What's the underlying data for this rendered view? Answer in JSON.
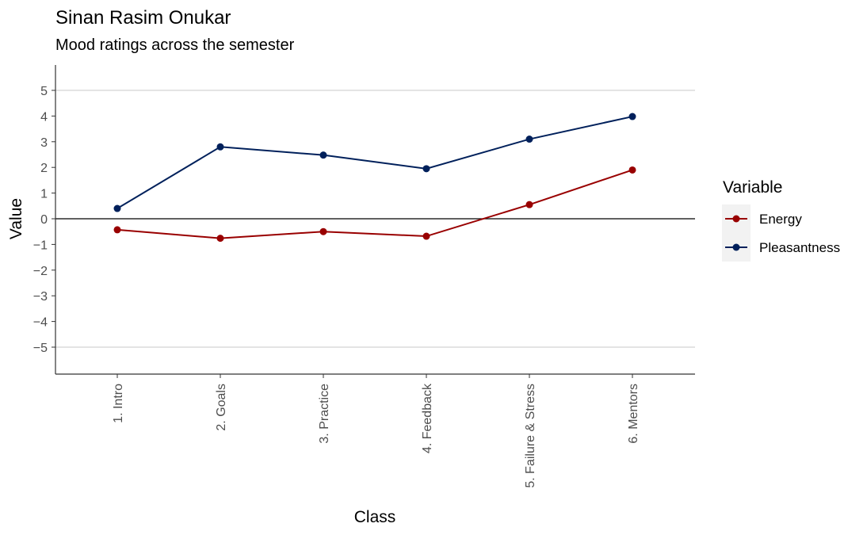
{
  "chart_data": {
    "type": "line",
    "title": "Sinan Rasim Onukar",
    "subtitle": "Mood ratings across the semester",
    "xlabel": "Class",
    "ylabel": "Value",
    "categories": [
      "1. Intro",
      "2. Goals",
      "3. Practice",
      "4. Feedback",
      "5. Failure & Stress",
      "6. Mentors"
    ],
    "ylim": [
      -6,
      6
    ],
    "yticks": [
      -5,
      -4,
      -3,
      -2,
      -1,
      0,
      1,
      2,
      3,
      4,
      5
    ],
    "ytick_labels": [
      "−5",
      "−4",
      "−3",
      "−2",
      "−1",
      "0",
      "1",
      "2",
      "3",
      "4",
      "5"
    ],
    "hlines": [
      -5,
      0,
      5
    ],
    "legend": {
      "title": "Variable",
      "position": "right"
    },
    "series": [
      {
        "name": "Energy",
        "color": "#990000",
        "values": [
          -0.43,
          -0.76,
          -0.5,
          -0.68,
          0.55,
          1.9
        ]
      },
      {
        "name": "Pleasantness",
        "color": "#00205b",
        "values": [
          0.4,
          2.8,
          2.48,
          1.95,
          3.1,
          3.98
        ]
      }
    ]
  }
}
